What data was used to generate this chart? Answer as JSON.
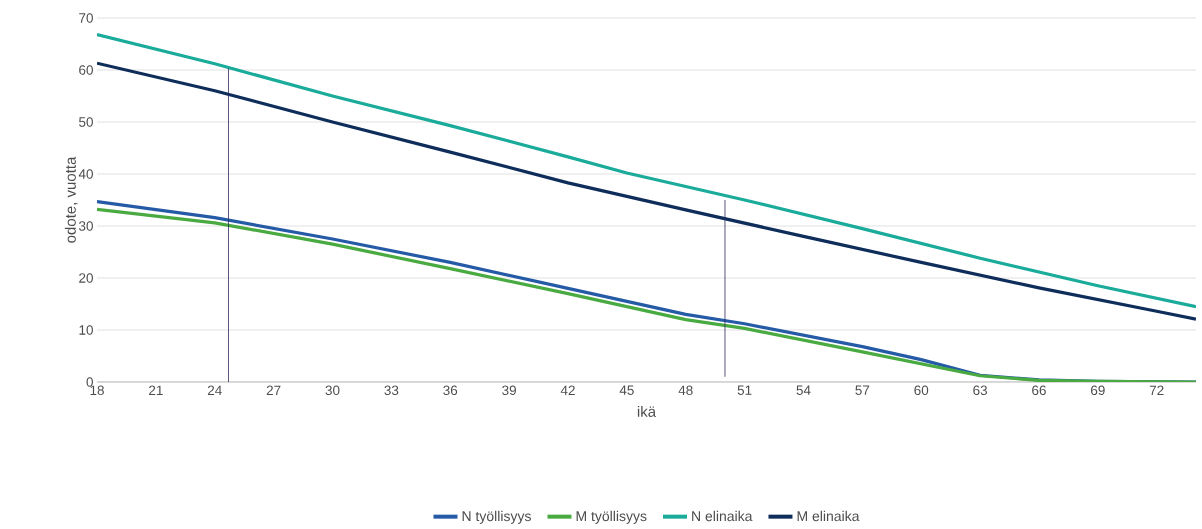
{
  "chart_data": {
    "type": "line",
    "xlabel": "ikä",
    "ylabel": "odote, vuotta",
    "xlim": [
      18,
      74
    ],
    "xticks": [
      18,
      21,
      24,
      27,
      30,
      33,
      36,
      39,
      42,
      45,
      48,
      51,
      54,
      57,
      60,
      63,
      66,
      69,
      72
    ],
    "ylim": [
      0,
      70
    ],
    "yticks": [
      0,
      10,
      20,
      30,
      40,
      50,
      60,
      70
    ],
    "grid": "y",
    "legend": "bottom",
    "marker": "none",
    "line_style": "solid",
    "series": [
      {
        "name": "N työllisyys",
        "color": "#255aa6",
        "x": [
          18,
          24,
          30,
          36,
          42,
          48,
          51,
          57,
          60,
          63,
          66,
          69,
          74
        ],
        "values": [
          34.7,
          31.6,
          27.5,
          23,
          18,
          13,
          11.2,
          6.8,
          4.3,
          1.3,
          0.4,
          0.1,
          0
        ]
      },
      {
        "name": "M työllisyys",
        "color": "#4aaa42",
        "x": [
          18,
          24,
          30,
          36,
          42,
          48,
          51,
          57,
          60,
          63,
          66,
          69,
          74
        ],
        "values": [
          33.2,
          30.6,
          26.5,
          21.8,
          17,
          12,
          10.3,
          5.8,
          3.5,
          1.2,
          0.3,
          0.1,
          0
        ]
      },
      {
        "name": "N elinaika",
        "color": "#1aab9b",
        "x": [
          18,
          24,
          30,
          36,
          42,
          45,
          51,
          57,
          63,
          69,
          74
        ],
        "values": [
          66.8,
          61.2,
          55,
          49.3,
          43.3,
          40.2,
          35,
          29.5,
          23.8,
          18.5,
          14.5
        ]
      },
      {
        "name": "M elinaika",
        "color": "#0e2d5a",
        "x": [
          18,
          24,
          30,
          36,
          42,
          48,
          54,
          60,
          66,
          72,
          74
        ],
        "values": [
          61.3,
          56,
          50,
          44.2,
          38.3,
          33.1,
          28,
          23,
          18.1,
          13.6,
          12.1
        ]
      },
      {
        "color": "#2e2a5e",
        "x": [
          24.7,
          24.7
        ],
        "values": [
          0,
          60.3
        ]
      },
      {
        "color": "#2e2a5e",
        "x": [
          50,
          50
        ],
        "values": [
          1,
          35
        ]
      }
    ]
  }
}
